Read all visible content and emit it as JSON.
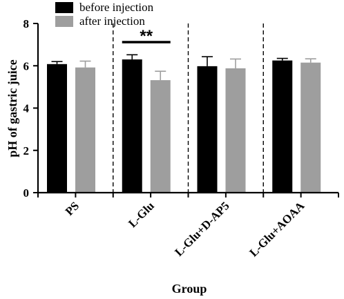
{
  "chart_data": {
    "type": "bar",
    "xlabel": "Group",
    "ylabel": "pH of gastric juice",
    "ylim": [
      0,
      8
    ],
    "yticks": [
      "0",
      "2",
      "4",
      "6",
      "8"
    ],
    "categories": [
      "PS",
      "L-Glu",
      "L-Glu+D-AP5",
      "L-Glu+AOAA"
    ],
    "series": [
      {
        "name": "before injection",
        "color": "#000000",
        "values": [
          6.08,
          6.3,
          5.98,
          6.25
        ],
        "errors": [
          0.12,
          0.22,
          0.45,
          0.1
        ]
      },
      {
        "name": "after injection",
        "color": "#9e9e9e",
        "values": [
          5.92,
          5.32,
          5.88,
          6.15
        ],
        "errors": [
          0.3,
          0.42,
          0.44,
          0.18
        ]
      }
    ],
    "annotations": [
      {
        "text": "**",
        "category_index": 1
      }
    ],
    "legend_position": "top-left",
    "grid": false,
    "group_separators": "dashed"
  }
}
